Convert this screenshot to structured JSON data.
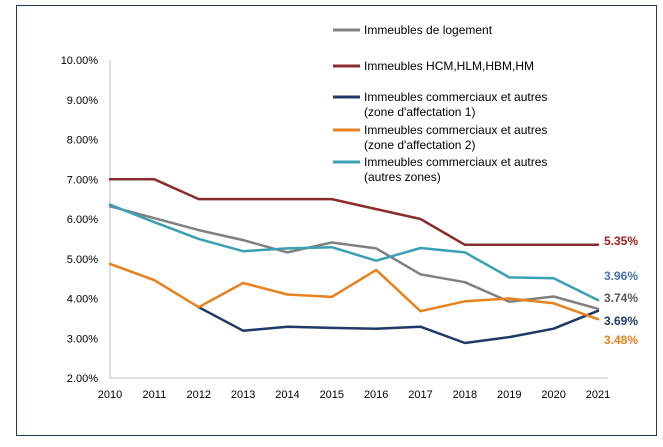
{
  "chart_data": {
    "type": "line",
    "title": "",
    "xlabel": "",
    "ylabel": "",
    "x": [
      "2010",
      "2011",
      "2012",
      "2013",
      "2014",
      "2015",
      "2016",
      "2017",
      "2018",
      "2019",
      "2020",
      "2021"
    ],
    "ylim": [
      0.02,
      0.1
    ],
    "yticks": [
      "2.00%",
      "3.00%",
      "4.00%",
      "5.00%",
      "6.00%",
      "7.00%",
      "8.00%",
      "9.00%",
      "10.00%"
    ],
    "grid": false,
    "legend_position": "top-right",
    "series": [
      {
        "name": "Immeubles de logement",
        "legend_lines": [
          "Immeubles de logement"
        ],
        "color": "#808080",
        "values": [
          0.0632,
          0.0602,
          0.0572,
          0.0547,
          0.0516,
          0.0541,
          0.0526,
          0.0461,
          0.0441,
          0.0392,
          0.0405,
          0.0374
        ],
        "end_label": "3.74%",
        "end_label_color": "#595959"
      },
      {
        "name": "Immeubles HCM,HLM,HBM,HM",
        "legend_lines": [
          "Immeubles HCM,HLM,HBM,HM"
        ],
        "color": "#8b2c2c",
        "values": [
          0.07,
          0.07,
          0.065,
          0.065,
          0.065,
          0.065,
          0.0625,
          0.06,
          0.0535,
          0.0535,
          0.0535,
          0.0535
        ],
        "end_label": "5.35%",
        "end_label_color": "#9e1b1b"
      },
      {
        "name": "Immeubles commerciaux et autres (zone d'affectation 1)",
        "legend_lines": [
          "Immeubles commerciaux et autres",
          "(zone d'affectation 1)"
        ],
        "color": "#1f3a68",
        "values": [
          null,
          null,
          0.0378,
          0.0319,
          0.0329,
          0.0326,
          0.0324,
          0.0329,
          0.0288,
          0.0303,
          0.0324,
          0.0369
        ],
        "end_label": "3.69%",
        "end_label_color": "#1f3a68"
      },
      {
        "name": "Immeubles commerciaux et autres (zone d'affectation 2)",
        "legend_lines": [
          "Immeubles commerciaux et autres",
          "(zone d'affectation 2)"
        ],
        "color": "#e8821e",
        "values": [
          0.0487,
          0.0446,
          0.0378,
          0.0439,
          0.041,
          0.0404,
          0.0472,
          0.0368,
          0.0393,
          0.04,
          0.0388,
          0.0348
        ],
        "end_label": "3.48%",
        "end_label_color": "#e8821e"
      },
      {
        "name": "Immeubles commerciaux et autres (autres zones)",
        "legend_lines": [
          "Immeubles commerciaux et autres",
          "(autres zones)"
        ],
        "color": "#3aa0b4",
        "values": [
          0.0636,
          0.0592,
          0.055,
          0.0519,
          0.0526,
          0.0529,
          0.0495,
          0.0527,
          0.0516,
          0.0453,
          0.0451,
          0.0396
        ],
        "end_label": "3.96%",
        "end_label_color": "#4a74a8"
      }
    ]
  }
}
